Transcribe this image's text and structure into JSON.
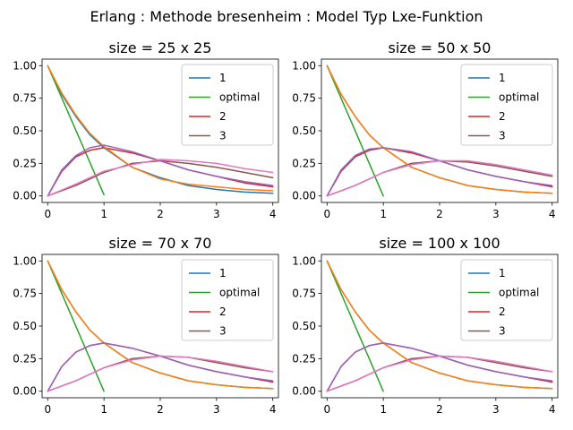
{
  "figure": {
    "suptitle": "Erlang : Methode bresenheim : Model Typ Lxe-Funktion"
  },
  "chart_data": [
    {
      "type": "line",
      "title": "size = 25 x 25",
      "xlim": [
        -0.1,
        4.1
      ],
      "ylim": [
        -0.05,
        1.05
      ],
      "xticks": [
        0,
        1,
        2,
        3,
        4
      ],
      "yticks": [
        0.0,
        0.25,
        0.5,
        0.75,
        1.0
      ],
      "xtick_labels": [
        "0",
        "1",
        "2",
        "3",
        "4"
      ],
      "ytick_labels": [
        "0.00",
        "0.25",
        "0.50",
        "0.75",
        "1.00"
      ],
      "legend": {
        "placement": "upper-right",
        "entries": [
          "1",
          "optimal",
          "2",
          "3"
        ]
      },
      "series": [
        {
          "name": "1",
          "color": "#1f77b4",
          "x": [
            0,
            0.25,
            0.5,
            0.75,
            1,
            1.5,
            2,
            2.5,
            3,
            3.5,
            4
          ],
          "y": [
            1.0,
            0.78,
            0.61,
            0.47,
            0.37,
            0.22,
            0.14,
            0.08,
            0.05,
            0.03,
            0.02
          ]
        },
        {
          "name": "optimal",
          "color": "#2ca02c",
          "x": [
            0,
            1
          ],
          "y": [
            1.0,
            0.01
          ]
        },
        {
          "name": "2",
          "color": "#d62728",
          "x": [
            0,
            0.25,
            0.5,
            0.75,
            1,
            1.5,
            2,
            2.5,
            3,
            3.5,
            4
          ],
          "y": [
            0.0,
            0.19,
            0.3,
            0.35,
            0.37,
            0.33,
            0.27,
            0.2,
            0.15,
            0.1,
            0.07
          ]
        },
        {
          "name": "3",
          "color": "#8c564b",
          "x": [
            0,
            0.5,
            1,
            1.5,
            2,
            2.5,
            3,
            3.5,
            4
          ],
          "y": [
            0.0,
            0.08,
            0.18,
            0.25,
            0.27,
            0.25,
            0.22,
            0.18,
            0.14
          ]
        },
        {
          "color": "#ff7f0e",
          "x": [
            0,
            0.25,
            0.5,
            0.75,
            1,
            1.5,
            2,
            2.5,
            3,
            3.5,
            4
          ],
          "y": [
            1.0,
            0.79,
            0.62,
            0.48,
            0.38,
            0.22,
            0.13,
            0.09,
            0.07,
            0.05,
            0.04
          ]
        },
        {
          "color": "#9467bd",
          "x": [
            0,
            0.25,
            0.5,
            0.75,
            1,
            1.5,
            2,
            2.5,
            3,
            3.5,
            4
          ],
          "y": [
            0.0,
            0.2,
            0.31,
            0.37,
            0.39,
            0.34,
            0.27,
            0.2,
            0.15,
            0.11,
            0.08
          ]
        },
        {
          "color": "#e377c2",
          "x": [
            0,
            0.5,
            1,
            1.5,
            2,
            2.5,
            3,
            3.5,
            4
          ],
          "y": [
            0.0,
            0.09,
            0.19,
            0.24,
            0.28,
            0.27,
            0.25,
            0.21,
            0.18
          ]
        }
      ]
    },
    {
      "type": "line",
      "title": "size = 50 x 50",
      "xlim": [
        -0.1,
        4.1
      ],
      "ylim": [
        -0.05,
        1.05
      ],
      "xticks": [
        0,
        1,
        2,
        3,
        4
      ],
      "yticks": [
        0.0,
        0.25,
        0.5,
        0.75,
        1.0
      ],
      "xtick_labels": [
        "0",
        "1",
        "2",
        "3",
        "4"
      ],
      "ytick_labels": [
        "0.00",
        "0.25",
        "0.50",
        "0.75",
        "1.00"
      ],
      "legend": {
        "placement": "upper-right",
        "entries": [
          "1",
          "optimal",
          "2",
          "3"
        ]
      },
      "series": [
        {
          "name": "1",
          "color": "#1f77b4",
          "x": [
            0,
            0.25,
            0.5,
            0.75,
            1,
            1.5,
            2,
            2.5,
            3,
            3.5,
            4
          ],
          "y": [
            1.0,
            0.78,
            0.61,
            0.47,
            0.37,
            0.22,
            0.14,
            0.08,
            0.05,
            0.03,
            0.02
          ]
        },
        {
          "name": "optimal",
          "color": "#2ca02c",
          "x": [
            0,
            1
          ],
          "y": [
            1.0,
            0.0
          ]
        },
        {
          "name": "2",
          "color": "#d62728",
          "x": [
            0,
            0.25,
            0.5,
            0.75,
            1,
            1.5,
            2,
            2.5,
            3,
            3.5,
            4
          ],
          "y": [
            0.0,
            0.19,
            0.3,
            0.35,
            0.37,
            0.33,
            0.27,
            0.2,
            0.15,
            0.11,
            0.07
          ]
        },
        {
          "name": "3",
          "color": "#8c564b",
          "x": [
            0,
            0.5,
            1,
            1.5,
            2,
            2.5,
            3,
            3.5,
            4
          ],
          "y": [
            0.0,
            0.08,
            0.18,
            0.25,
            0.27,
            0.26,
            0.23,
            0.19,
            0.15
          ]
        },
        {
          "color": "#ff7f0e",
          "x": [
            0,
            0.25,
            0.5,
            0.75,
            1,
            1.5,
            2,
            2.5,
            3,
            3.5,
            4
          ],
          "y": [
            1.0,
            0.78,
            0.61,
            0.47,
            0.37,
            0.22,
            0.14,
            0.08,
            0.05,
            0.03,
            0.02
          ]
        },
        {
          "color": "#9467bd",
          "x": [
            0,
            0.25,
            0.5,
            0.75,
            1,
            1.5,
            2,
            2.5,
            3,
            3.5,
            4
          ],
          "y": [
            0.0,
            0.2,
            0.31,
            0.36,
            0.37,
            0.34,
            0.27,
            0.2,
            0.15,
            0.11,
            0.08
          ]
        },
        {
          "color": "#e377c2",
          "x": [
            0,
            0.5,
            1,
            1.5,
            2,
            2.5,
            3,
            3.5,
            4
          ],
          "y": [
            0.0,
            0.08,
            0.18,
            0.24,
            0.27,
            0.27,
            0.24,
            0.2,
            0.16
          ]
        }
      ]
    },
    {
      "type": "line",
      "title": "size = 70 x 70",
      "xlim": [
        -0.1,
        4.1
      ],
      "ylim": [
        -0.05,
        1.05
      ],
      "xticks": [
        0,
        1,
        2,
        3,
        4
      ],
      "yticks": [
        0.0,
        0.25,
        0.5,
        0.75,
        1.0
      ],
      "xtick_labels": [
        "0",
        "1",
        "2",
        "3",
        "4"
      ],
      "ytick_labels": [
        "0.00",
        "0.25",
        "0.50",
        "0.75",
        "1.00"
      ],
      "legend": {
        "placement": "upper-right",
        "entries": [
          "1",
          "optimal",
          "2",
          "3"
        ]
      },
      "series": [
        {
          "name": "1",
          "color": "#1f77b4",
          "x": [
            0,
            0.25,
            0.5,
            0.75,
            1,
            1.5,
            2,
            2.5,
            3,
            3.5,
            4
          ],
          "y": [
            1.0,
            0.78,
            0.61,
            0.47,
            0.37,
            0.22,
            0.14,
            0.08,
            0.05,
            0.03,
            0.02
          ]
        },
        {
          "name": "optimal",
          "color": "#2ca02c",
          "x": [
            0,
            1
          ],
          "y": [
            1.0,
            0.0
          ]
        },
        {
          "name": "2",
          "color": "#d62728",
          "x": [
            0,
            0.25,
            0.5,
            0.75,
            1,
            1.5,
            2,
            2.5,
            3,
            3.5,
            4
          ],
          "y": [
            0.0,
            0.19,
            0.3,
            0.35,
            0.37,
            0.33,
            0.27,
            0.2,
            0.15,
            0.11,
            0.07
          ]
        },
        {
          "name": "3",
          "color": "#8c564b",
          "x": [
            0,
            0.5,
            1,
            1.5,
            2,
            2.5,
            3,
            3.5,
            4
          ],
          "y": [
            0.0,
            0.08,
            0.18,
            0.25,
            0.27,
            0.26,
            0.22,
            0.18,
            0.15
          ]
        },
        {
          "color": "#ff7f0e",
          "x": [
            0,
            0.25,
            0.5,
            0.75,
            1,
            1.5,
            2,
            2.5,
            3,
            3.5,
            4
          ],
          "y": [
            1.0,
            0.78,
            0.61,
            0.47,
            0.37,
            0.22,
            0.14,
            0.08,
            0.05,
            0.03,
            0.02
          ]
        },
        {
          "color": "#9467bd",
          "x": [
            0,
            0.25,
            0.5,
            0.75,
            1,
            1.5,
            2,
            2.5,
            3,
            3.5,
            4
          ],
          "y": [
            0.0,
            0.19,
            0.3,
            0.35,
            0.37,
            0.33,
            0.27,
            0.2,
            0.15,
            0.11,
            0.08
          ]
        },
        {
          "color": "#e377c2",
          "x": [
            0,
            0.5,
            1,
            1.5,
            2,
            2.5,
            3,
            3.5,
            4
          ],
          "y": [
            0.0,
            0.08,
            0.18,
            0.24,
            0.27,
            0.26,
            0.23,
            0.19,
            0.15
          ]
        }
      ]
    },
    {
      "type": "line",
      "title": "size = 100 x 100",
      "xlim": [
        -0.1,
        4.1
      ],
      "ylim": [
        -0.05,
        1.05
      ],
      "xticks": [
        0,
        1,
        2,
        3,
        4
      ],
      "yticks": [
        0.0,
        0.25,
        0.5,
        0.75,
        1.0
      ],
      "xtick_labels": [
        "0",
        "1",
        "2",
        "3",
        "4"
      ],
      "ytick_labels": [
        "0.00",
        "0.25",
        "0.50",
        "0.75",
        "1.00"
      ],
      "legend": {
        "placement": "upper-right",
        "entries": [
          "1",
          "optimal",
          "2",
          "3"
        ]
      },
      "series": [
        {
          "name": "1",
          "color": "#1f77b4",
          "x": [
            0,
            0.25,
            0.5,
            0.75,
            1,
            1.5,
            2,
            2.5,
            3,
            3.5,
            4
          ],
          "y": [
            1.0,
            0.78,
            0.61,
            0.47,
            0.37,
            0.22,
            0.14,
            0.08,
            0.05,
            0.03,
            0.02
          ]
        },
        {
          "name": "optimal",
          "color": "#2ca02c",
          "x": [
            0,
            1
          ],
          "y": [
            1.0,
            0.0
          ]
        },
        {
          "name": "2",
          "color": "#d62728",
          "x": [
            0,
            0.25,
            0.5,
            0.75,
            1,
            1.5,
            2,
            2.5,
            3,
            3.5,
            4
          ],
          "y": [
            0.0,
            0.19,
            0.3,
            0.35,
            0.37,
            0.33,
            0.27,
            0.2,
            0.15,
            0.11,
            0.07
          ]
        },
        {
          "name": "3",
          "color": "#8c564b",
          "x": [
            0,
            0.5,
            1,
            1.5,
            2,
            2.5,
            3,
            3.5,
            4
          ],
          "y": [
            0.0,
            0.08,
            0.18,
            0.25,
            0.27,
            0.26,
            0.22,
            0.18,
            0.15
          ]
        },
        {
          "color": "#ff7f0e",
          "x": [
            0,
            0.25,
            0.5,
            0.75,
            1,
            1.5,
            2,
            2.5,
            3,
            3.5,
            4
          ],
          "y": [
            1.0,
            0.78,
            0.61,
            0.47,
            0.37,
            0.22,
            0.14,
            0.08,
            0.05,
            0.03,
            0.02
          ]
        },
        {
          "color": "#9467bd",
          "x": [
            0,
            0.25,
            0.5,
            0.75,
            1,
            1.5,
            2,
            2.5,
            3,
            3.5,
            4
          ],
          "y": [
            0.0,
            0.19,
            0.3,
            0.35,
            0.37,
            0.33,
            0.27,
            0.2,
            0.15,
            0.11,
            0.08
          ]
        },
        {
          "color": "#e377c2",
          "x": [
            0,
            0.5,
            1,
            1.5,
            2,
            2.5,
            3,
            3.5,
            4
          ],
          "y": [
            0.0,
            0.08,
            0.18,
            0.24,
            0.27,
            0.26,
            0.23,
            0.19,
            0.15
          ]
        }
      ]
    }
  ]
}
